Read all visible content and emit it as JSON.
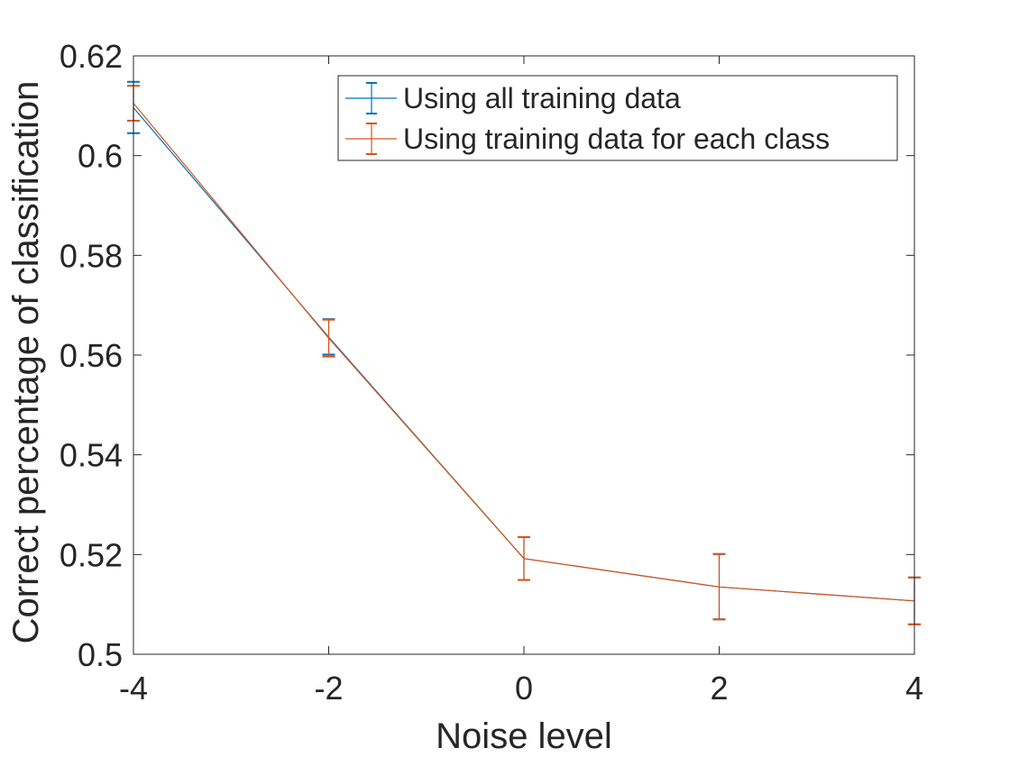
{
  "chart_data": {
    "type": "line",
    "title": "",
    "xlabel": "Noise level",
    "ylabel": "Correct percentage of classification",
    "xlim": [
      -4,
      4
    ],
    "ylim": [
      0.5,
      0.62
    ],
    "xticks": [
      -4,
      -2,
      0,
      2,
      4
    ],
    "xtick_labels": [
      "-4",
      "-2",
      "0",
      "2",
      "4"
    ],
    "yticks": [
      0.5,
      0.52,
      0.54,
      0.56,
      0.58,
      0.6,
      0.62
    ],
    "ytick_labels": [
      "0.5",
      "0.52",
      "0.54",
      "0.56",
      "0.58",
      "0.6",
      "0.62"
    ],
    "grid": false,
    "legend_position": "top-right",
    "error_bars": true,
    "x": [
      -4,
      -2,
      0,
      2,
      4
    ],
    "series": [
      {
        "name": "Using all training data",
        "color": "#0072BD",
        "values": [
          0.6096,
          0.5636,
          0.5192,
          0.5135,
          0.5107
        ],
        "err_low": [
          0.6045,
          0.5601,
          0.5149,
          0.507,
          0.506
        ],
        "err_high": [
          0.6148,
          0.5672,
          0.5235,
          0.5201,
          0.5154
        ]
      },
      {
        "name": "Using training data for each class",
        "color": "#D95319",
        "values": [
          0.6105,
          0.5634,
          0.5192,
          0.5135,
          0.5107
        ],
        "err_low": [
          0.607,
          0.5597,
          0.5149,
          0.507,
          0.506
        ],
        "err_high": [
          0.614,
          0.5671,
          0.5235,
          0.5201,
          0.5154
        ]
      }
    ]
  }
}
